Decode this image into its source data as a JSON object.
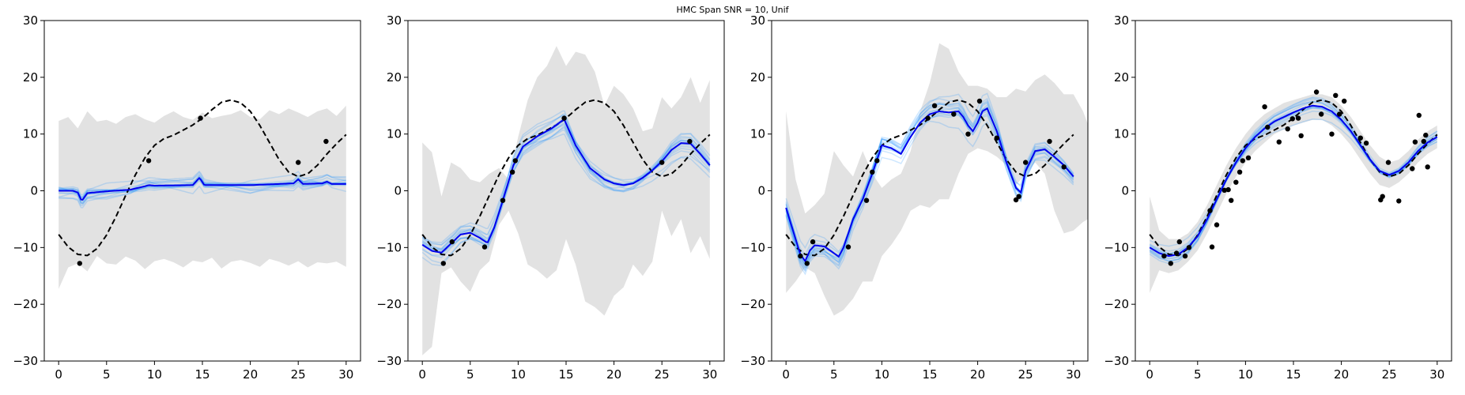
{
  "figure": {
    "title": "HMC Span SNR = 10, Unif"
  },
  "chart_data": [
    {
      "type": "line",
      "xlim": [
        -1.5,
        31.5
      ],
      "ylim": [
        -30,
        30
      ],
      "xticks": [
        "0",
        "5",
        "10",
        "15",
        "20",
        "25",
        "30"
      ],
      "yticks": [
        "30",
        "20",
        "10",
        "0",
        "−10",
        "−20",
        "−30"
      ],
      "grid": false,
      "truth": {
        "x": [
          0,
          1,
          2,
          3,
          4,
          5,
          6,
          7,
          8,
          9,
          10,
          11,
          12,
          13,
          14,
          15,
          16,
          17,
          18,
          19,
          20,
          21,
          22,
          23,
          24,
          25,
          26,
          27,
          28,
          29,
          30
        ],
        "y": [
          -7.7,
          -9.9,
          -11.2,
          -11.4,
          -10.2,
          -7.8,
          -4.5,
          -0.8,
          2.8,
          5.8,
          8.0,
          9.2,
          9.8,
          10.7,
          11.6,
          12.8,
          14.3,
          15.6,
          16.0,
          15.5,
          14.0,
          11.5,
          8.5,
          5.5,
          3.3,
          2.5,
          3.0,
          4.5,
          6.5,
          8.3,
          9.9
        ]
      },
      "observations": {
        "x": [
          2.2,
          9.4,
          14.8,
          25.0,
          27.9
        ],
        "y": [
          -12.8,
          5.3,
          12.8,
          5.0,
          8.7
        ]
      },
      "posterior_mean": {
        "x": [
          0,
          1.5,
          2,
          2.4,
          3,
          5,
          7.5,
          9,
          9.4,
          10,
          14,
          14.7,
          15.2,
          20,
          24.5,
          25,
          25.5,
          27.5,
          28,
          28.5,
          30
        ],
        "y": [
          0,
          0,
          -0.3,
          -1.8,
          -0.4,
          -0.1,
          0.2,
          0.8,
          1.0,
          0.9,
          1.0,
          2.3,
          1.0,
          1.0,
          1.3,
          2.0,
          1.2,
          1.3,
          1.6,
          1.2,
          1.2
        ]
      },
      "samples_note": "sample curves ~0 with spikes near observations",
      "band": {
        "upper": [
          12.3,
          13.0,
          11.0,
          14.0,
          12.2,
          12.5,
          11.8,
          13.0,
          13.5,
          12.6,
          12.0,
          13.2,
          14.0,
          13.0,
          12.5,
          13.8,
          12.8,
          13.2,
          13.5,
          14.2,
          13.0,
          12.6,
          14.2,
          13.5,
          14.5,
          13.8,
          13.0,
          14.0,
          14.5,
          13.2,
          15.0
        ],
        "lower": [
          -17.3,
          -13.5,
          -12.8,
          -14.2,
          -11.5,
          -12.8,
          -13.0,
          -11.6,
          -12.3,
          -13.8,
          -12.4,
          -12.0,
          -12.6,
          -13.5,
          -12.3,
          -12.6,
          -11.8,
          -13.7,
          -12.5,
          -12.2,
          -12.7,
          -13.4,
          -12.0,
          -12.5,
          -13.2,
          -12.4,
          -13.5,
          -12.6,
          -12.8,
          -12.5,
          -13.4
        ]
      }
    },
    {
      "type": "line",
      "xlim": [
        -1.5,
        31.5
      ],
      "ylim": [
        -30,
        30
      ],
      "xticks": [
        "0",
        "5",
        "10",
        "15",
        "20",
        "25",
        "30"
      ],
      "yticks": [
        "30",
        "20",
        "10",
        "0",
        "−10",
        "−20",
        "−30"
      ],
      "grid": false,
      "truth": {
        "x": [
          0,
          1,
          2,
          3,
          4,
          5,
          6,
          7,
          8,
          9,
          10,
          11,
          12,
          13,
          14,
          15,
          16,
          17,
          18,
          19,
          20,
          21,
          22,
          23,
          24,
          25,
          26,
          27,
          28,
          29,
          30
        ],
        "y": [
          -7.7,
          -9.9,
          -11.2,
          -11.4,
          -10.2,
          -7.8,
          -4.5,
          -0.8,
          2.8,
          5.8,
          8.0,
          9.2,
          9.8,
          10.7,
          11.6,
          12.8,
          14.3,
          15.6,
          16.0,
          15.5,
          14.0,
          11.5,
          8.5,
          5.5,
          3.3,
          2.5,
          3.0,
          4.5,
          6.5,
          8.3,
          9.9
        ]
      },
      "observations": {
        "x": [
          2.2,
          3.1,
          6.5,
          8.4,
          9.4,
          9.7,
          14.8,
          25.0,
          27.9
        ],
        "y": [
          -12.8,
          -9.0,
          -9.9,
          -1.7,
          3.3,
          5.3,
          12.8,
          5.0,
          8.7
        ]
      },
      "posterior_mean": {
        "x": [
          0,
          1,
          2,
          3,
          4,
          5,
          6,
          6.8,
          7.5,
          8.4,
          9.5,
          10.5,
          12,
          13.5,
          14.8,
          16,
          17.5,
          19,
          20,
          21,
          22,
          23,
          24,
          25,
          26,
          27,
          28,
          29,
          30
        ],
        "y": [
          -9.5,
          -10.6,
          -10.9,
          -9.3,
          -7.7,
          -7.4,
          -8.3,
          -9.2,
          -6.5,
          -1.7,
          4.5,
          7.8,
          9.6,
          11.0,
          12.6,
          8.0,
          4.0,
          2.0,
          1.3,
          1.0,
          1.3,
          2.3,
          3.6,
          5.2,
          7.2,
          8.4,
          8.3,
          6.5,
          4.5
        ]
      },
      "band": {
        "upper": [
          8.5,
          6.8,
          -1.0,
          5.0,
          4.0,
          2.0,
          1.5,
          3.0,
          4.0,
          2.0,
          9.5,
          16.0,
          20.0,
          22.0,
          25.5,
          22.0,
          24.5,
          24.0,
          21.0,
          15.0,
          18.5,
          17.0,
          14.5,
          10.5,
          11.0,
          16.5,
          14.5,
          16.5,
          20.0,
          15.5,
          19.5
        ],
        "lower": [
          -29.0,
          -27.5,
          -14.5,
          -13.5,
          -16.0,
          -17.8,
          -14.0,
          -12.4,
          -6.0,
          -3.5,
          -7.5,
          -13.0,
          -14.0,
          -15.5,
          -14.0,
          -8.5,
          -13.0,
          -19.5,
          -20.5,
          -22.0,
          -18.5,
          -17.0,
          -13.0,
          -15.0,
          -12.5,
          -3.5,
          -8.0,
          -5.0,
          -11.0,
          -8.0,
          -12.0
        ]
      }
    },
    {
      "type": "line",
      "xlim": [
        -1.5,
        31.5
      ],
      "ylim": [
        -30,
        30
      ],
      "xticks": [
        "0",
        "5",
        "10",
        "15",
        "20",
        "25",
        "30"
      ],
      "yticks": [
        "30",
        "20",
        "10",
        "0",
        "−10",
        "−20",
        "−30"
      ],
      "grid": false,
      "truth": {
        "x": [
          0,
          1,
          2,
          3,
          4,
          5,
          6,
          7,
          8,
          9,
          10,
          11,
          12,
          13,
          14,
          15,
          16,
          17,
          18,
          19,
          20,
          21,
          22,
          23,
          24,
          25,
          26,
          27,
          28,
          29,
          30
        ],
        "y": [
          -7.7,
          -9.9,
          -11.2,
          -11.4,
          -10.2,
          -7.8,
          -4.5,
          -0.8,
          2.8,
          5.8,
          8.0,
          9.2,
          9.8,
          10.7,
          11.6,
          12.8,
          14.3,
          15.6,
          16.0,
          15.5,
          14.0,
          11.5,
          8.5,
          5.5,
          3.3,
          2.5,
          3.0,
          4.5,
          6.5,
          8.3,
          9.9
        ]
      },
      "observations": {
        "x": [
          1.5,
          2.2,
          2.8,
          6.5,
          8.4,
          9.0,
          9.5,
          14.8,
          15.5,
          17.5,
          19.0,
          20.2,
          22.0,
          24.0,
          24.3,
          25.0,
          27.5,
          29.0
        ],
        "y": [
          -11.5,
          -12.8,
          -9.0,
          -9.9,
          -1.7,
          3.3,
          5.3,
          12.8,
          15.0,
          13.5,
          10.0,
          15.8,
          9.3,
          -1.6,
          -1.0,
          5.0,
          8.7,
          4.2
        ]
      },
      "posterior_mean": {
        "x": [
          0,
          1,
          1.5,
          2,
          2.5,
          3,
          4,
          5,
          5.5,
          6,
          6.5,
          7,
          8,
          9,
          9.5,
          10,
          11,
          12,
          13,
          14,
          15,
          16,
          17,
          18,
          18.5,
          19,
          19.5,
          20,
          20.5,
          21,
          22,
          23,
          24,
          24.5,
          25,
          26,
          27,
          28,
          29,
          30
        ],
        "y": [
          -3,
          -8.5,
          -11.2,
          -12.4,
          -10.5,
          -9.6,
          -9.8,
          -11.0,
          -11.6,
          -10.0,
          -7.5,
          -5.0,
          -1.5,
          3.0,
          5.5,
          8.0,
          7.5,
          6.5,
          9.5,
          12.0,
          13.5,
          14.0,
          13.8,
          14.0,
          13.0,
          11.5,
          10.5,
          12.0,
          14.0,
          14.5,
          10.5,
          5.0,
          0.5,
          -0.3,
          3.5,
          7.0,
          7.3,
          6.0,
          4.5,
          2.5
        ]
      },
      "band": {
        "upper": [
          14.0,
          2.0,
          -4.0,
          -2.5,
          -0.5,
          7.0,
          4.5,
          2.5,
          7.0,
          3.0,
          0.5,
          2.0,
          3.0,
          7.0,
          14.0,
          19.0,
          26.0,
          25.0,
          21.0,
          18.5,
          18.5,
          18.0,
          16.5,
          16.5,
          18.0,
          17.5,
          19.5,
          20.5,
          19.0,
          17.0,
          17.0,
          14.0,
          9.5,
          11.0,
          12.0,
          13.5,
          13.0,
          12.0,
          10.0,
          7.5,
          6.5
        ],
        "lower": [
          -18.0,
          -16.0,
          -13.5,
          -14.5,
          -18.5,
          -22.0,
          -21.0,
          -19.0,
          -16.0,
          -16.0,
          -11.5,
          -9.5,
          -7.0,
          -3.5,
          -2.5,
          -3.0,
          -1.5,
          -1.5,
          3.0,
          6.5,
          7.5,
          7.0,
          6.0,
          4.5,
          1.0,
          3.0,
          5.0,
          3.0,
          -3.5,
          -7.5,
          -7.0,
          -5.5,
          -4.5,
          -2.5,
          -2.0,
          -1.5,
          -2.0,
          -3.0,
          -5.0,
          -7.0,
          -5.0
        ]
      }
    },
    {
      "type": "line",
      "xlim": [
        -1.5,
        31.5
      ],
      "ylim": [
        -30,
        30
      ],
      "xticks": [
        "0",
        "5",
        "10",
        "15",
        "20",
        "25",
        "30"
      ],
      "yticks": [
        "30",
        "20",
        "10",
        "0",
        "−10",
        "−20",
        "−30"
      ],
      "grid": false,
      "truth": {
        "x": [
          0,
          1,
          2,
          3,
          4,
          5,
          6,
          7,
          8,
          9,
          10,
          11,
          12,
          13,
          14,
          15,
          16,
          17,
          18,
          19,
          20,
          21,
          22,
          23,
          24,
          25,
          26,
          27,
          28,
          29,
          30
        ],
        "y": [
          -7.7,
          -9.9,
          -11.2,
          -11.4,
          -10.2,
          -7.8,
          -4.5,
          -0.8,
          2.8,
          5.8,
          8.0,
          9.2,
          9.8,
          10.7,
          11.6,
          12.8,
          14.3,
          15.6,
          16.0,
          15.5,
          14.0,
          11.5,
          8.5,
          5.5,
          3.3,
          2.5,
          3.0,
          4.5,
          6.5,
          8.3,
          9.9
        ]
      },
      "observations": {
        "x": [
          1.5,
          2.2,
          2.8,
          3.1,
          3.7,
          4.1,
          6.3,
          6.5,
          7.0,
          7.8,
          8.2,
          8.5,
          9.0,
          9.4,
          9.7,
          10.3,
          12.0,
          12.3,
          13.5,
          14.4,
          14.9,
          15.5,
          15.8,
          17.4,
          17.9,
          19.0,
          19.4,
          19.8,
          20.3,
          22.0,
          22.6,
          24.1,
          24.3,
          24.9,
          26.0,
          27.4,
          27.7,
          28.1,
          28.6,
          28.8,
          29.0
        ],
        "y": [
          -11.5,
          -12.8,
          -11.0,
          -9.0,
          -11.5,
          -10.0,
          -3.5,
          -9.9,
          -6.0,
          0.1,
          0.2,
          -1.7,
          1.5,
          3.3,
          5.3,
          5.8,
          14.8,
          11.2,
          8.6,
          10.9,
          12.7,
          12.8,
          9.7,
          17.4,
          13.5,
          10.0,
          16.8,
          13.5,
          15.8,
          9.3,
          8.4,
          -1.6,
          -1.0,
          5.0,
          -1.8,
          3.9,
          8.6,
          13.3,
          8.7,
          9.8,
          4.2
        ]
      },
      "posterior_mean": {
        "x": [
          0,
          1,
          2,
          3,
          4,
          5,
          6,
          7,
          8,
          9,
          10,
          11,
          12,
          13,
          14,
          15,
          16,
          17,
          18,
          19,
          20,
          21,
          22,
          23,
          24,
          25,
          26,
          27,
          28,
          29,
          30
        ],
        "y": [
          -10.0,
          -11.0,
          -11.5,
          -11.2,
          -10.0,
          -8.0,
          -5.0,
          -1.5,
          2.0,
          5.0,
          7.5,
          9.5,
          11.0,
          12.2,
          13.0,
          13.8,
          14.5,
          15.0,
          14.8,
          14.0,
          12.5,
          10.5,
          8.0,
          5.5,
          3.5,
          2.8,
          3.5,
          5.0,
          7.0,
          8.5,
          9.5
        ]
      },
      "band": {
        "upper": [
          -1.0,
          -7.0,
          -8.5,
          -8.5,
          -7.5,
          -5.5,
          -2.5,
          1.0,
          4.5,
          7.5,
          10.0,
          12.0,
          13.5,
          14.5,
          15.5,
          16.0,
          16.5,
          17.0,
          17.0,
          16.5,
          15.0,
          13.0,
          10.5,
          8.0,
          6.0,
          5.0,
          5.5,
          7.0,
          9.0,
          10.5,
          11.5
        ],
        "lower": [
          -18.0,
          -14.0,
          -14.5,
          -14.0,
          -12.5,
          -10.5,
          -7.5,
          -4.0,
          -0.5,
          2.5,
          5.0,
          7.0,
          8.5,
          10.0,
          10.8,
          11.5,
          12.0,
          12.5,
          12.5,
          11.5,
          10.0,
          8.0,
          5.5,
          3.0,
          1.0,
          0.5,
          1.5,
          3.0,
          5.0,
          6.5,
          7.5
        ]
      }
    }
  ]
}
